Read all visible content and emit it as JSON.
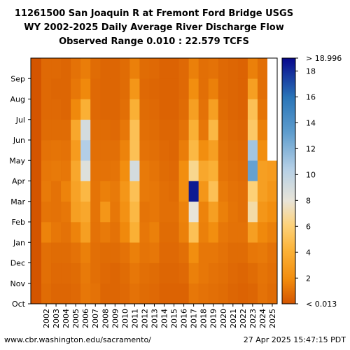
{
  "title_lines": [
    "11261500 San Joaquin R at Fremont Ford Bridge USGS",
    "WY 2002-2025 Daily Average River Discharge Flow",
    "Observed Range 0.010 : 22.579 TCFS"
  ],
  "footer": {
    "left": "www.cbr.washington.edu/sacramento/",
    "right": "27 Apr 2025 15:47:15 PDT"
  },
  "chart_data": {
    "type": "heatmap",
    "title": "11261500 San Joaquin R at Fremont Ford Bridge USGS WY 2002-2025 Daily Average River Discharge Flow Observed Range 0.010 : 22.579 TCFS",
    "x_categories": [
      "2002",
      "2003",
      "2004",
      "2005",
      "2006",
      "2007",
      "2008",
      "2009",
      "2010",
      "2011",
      "2012",
      "2013",
      "2014",
      "2015",
      "2016",
      "2017",
      "2018",
      "2019",
      "2020",
      "2021",
      "2022",
      "2023",
      "2024",
      "2025"
    ],
    "y_categories": [
      "Oct",
      "Nov",
      "Dec",
      "Jan",
      "Feb",
      "Mar",
      "Apr",
      "May",
      "Jun",
      "Jul",
      "Aug",
      "Sep"
    ],
    "colorbar": {
      "ticks": [
        2,
        4,
        6,
        8,
        10,
        12,
        14,
        16,
        18
      ],
      "min_label": "< 0.013",
      "max_label": "> 18.996",
      "range": [
        0.013,
        18.996
      ]
    },
    "monthly_flow_tcfs": {
      "2002": [
        0.8,
        0.9,
        0.9,
        1.6,
        1.1,
        1.3,
        1.2,
        1.0,
        0.8,
        0.7,
        0.7,
        0.7
      ],
      "2003": [
        0.6,
        0.7,
        0.8,
        1.2,
        1.0,
        1.0,
        1.3,
        1.1,
        0.8,
        0.7,
        0.6,
        0.7
      ],
      "2004": [
        0.6,
        0.7,
        0.8,
        1.0,
        1.2,
        1.6,
        1.2,
        1.0,
        0.8,
        0.6,
        0.6,
        0.6
      ],
      "2005": [
        0.7,
        0.8,
        1.0,
        1.6,
        3.0,
        3.2,
        3.5,
        2.8,
        3.5,
        1.8,
        1.2,
        1.0
      ],
      "2006": [
        1.2,
        1.3,
        1.5,
        3.0,
        3.5,
        4.5,
        8.5,
        10.5,
        9.0,
        4.0,
        1.8,
        1.4
      ],
      "2007": [
        1.0,
        0.9,
        0.9,
        1.0,
        1.1,
        1.1,
        1.0,
        0.9,
        0.8,
        0.7,
        0.7,
        0.8
      ],
      "2008": [
        0.6,
        0.7,
        0.8,
        1.3,
        2.5,
        1.5,
        1.0,
        0.9,
        0.8,
        0.6,
        0.6,
        0.6
      ],
      "2009": [
        0.6,
        0.6,
        0.8,
        1.0,
        1.2,
        1.3,
        1.1,
        0.9,
        0.7,
        0.6,
        0.6,
        0.6
      ],
      "2010": [
        0.7,
        0.8,
        1.0,
        1.8,
        2.2,
        2.5,
        2.0,
        1.6,
        1.2,
        0.9,
        0.8,
        0.8
      ],
      "2011": [
        1.0,
        1.2,
        1.5,
        4.0,
        4.5,
        5.0,
        9.0,
        5.0,
        5.0,
        4.0,
        2.5,
        1.5
      ],
      "2012": [
        0.8,
        0.9,
        1.1,
        1.2,
        1.1,
        1.3,
        1.3,
        1.0,
        0.9,
        0.8,
        0.7,
        0.8
      ],
      "2013": [
        0.7,
        0.8,
        1.2,
        1.5,
        1.2,
        1.2,
        1.1,
        0.9,
        0.8,
        0.7,
        0.6,
        0.7
      ],
      "2014": [
        0.5,
        0.6,
        0.7,
        0.8,
        0.9,
        0.9,
        0.8,
        0.7,
        0.6,
        0.5,
        0.5,
        0.5
      ],
      "2015": [
        0.5,
        0.6,
        0.7,
        0.8,
        0.9,
        0.8,
        0.7,
        0.6,
        0.6,
        0.5,
        0.5,
        0.5
      ],
      "2016": [
        0.5,
        0.7,
        0.9,
        1.5,
        1.6,
        2.0,
        2.0,
        1.4,
        1.0,
        0.8,
        0.7,
        0.7
      ],
      "2017": [
        1.2,
        1.5,
        2.0,
        5.0,
        8.0,
        18.5,
        6.5,
        4.5,
        4.0,
        3.0,
        2.0,
        1.5
      ],
      "2018": [
        1.0,
        1.2,
        1.2,
        1.5,
        1.6,
        2.5,
        3.5,
        2.0,
        1.2,
        1.0,
        0.9,
        0.9
      ],
      "2019": [
        0.9,
        1.0,
        1.2,
        2.0,
        3.0,
        5.0,
        4.0,
        3.0,
        4.5,
        3.0,
        1.5,
        1.0
      ],
      "2020": [
        0.8,
        0.9,
        1.0,
        1.2,
        1.5,
        1.3,
        1.1,
        1.0,
        0.9,
        0.8,
        0.7,
        0.7
      ],
      "2021": [
        0.6,
        0.7,
        0.8,
        1.0,
        1.1,
        1.0,
        0.9,
        0.8,
        0.7,
        0.6,
        0.6,
        0.6
      ],
      "2022": [
        0.5,
        0.6,
        0.8,
        1.0,
        0.9,
        0.9,
        0.8,
        0.7,
        0.6,
        0.5,
        0.5,
        0.5
      ],
      "2023": [
        0.6,
        0.8,
        1.2,
        3.0,
        7.0,
        6.0,
        13.0,
        11.0,
        5.5,
        5.0,
        3.0,
        1.5
      ],
      "2024": [
        1.0,
        1.1,
        1.3,
        1.8,
        2.5,
        3.0,
        3.0,
        2.0,
        1.5,
        1.1,
        0.9,
        0.9
      ],
      "2025": [
        0.8,
        0.9,
        1.0,
        1.5,
        2.0,
        2.5,
        2.8,
        null,
        null,
        null,
        null,
        null
      ]
    },
    "colors": {
      "low": "#d45500",
      "mid_low": "#f28c0d",
      "mid": "#fdd27a",
      "neutral": "#e8e4d8",
      "mid_high": "#8fb9dd",
      "high": "#2a75b8",
      "max": "#08088c",
      "missing": "#ffffff"
    }
  }
}
